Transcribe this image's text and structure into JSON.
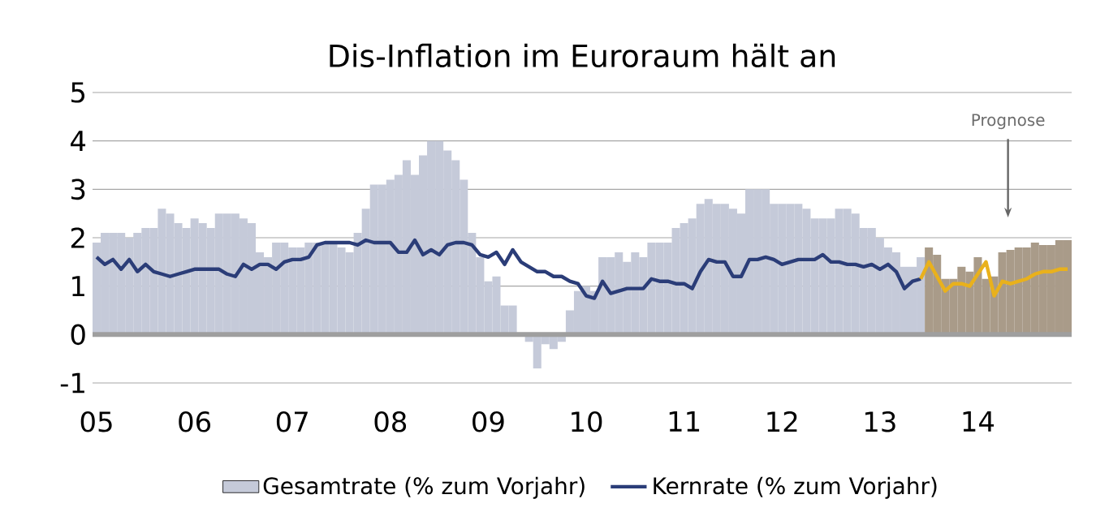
{
  "chart_data": {
    "type": "bar",
    "title": "Dis-Inflation im Euroraum hält an",
    "categories": [
      "05",
      null,
      null,
      null,
      null,
      null,
      null,
      null,
      null,
      null,
      null,
      null,
      "06",
      null,
      null,
      null,
      null,
      null,
      null,
      null,
      null,
      null,
      null,
      null,
      "07",
      null,
      null,
      null,
      null,
      null,
      null,
      null,
      null,
      null,
      null,
      null,
      "08",
      null,
      null,
      null,
      null,
      null,
      null,
      null,
      null,
      null,
      null,
      null,
      "09",
      null,
      null,
      null,
      null,
      null,
      null,
      null,
      null,
      null,
      null,
      null,
      "10",
      null,
      null,
      null,
      null,
      null,
      null,
      null,
      null,
      null,
      null,
      null,
      "11",
      null,
      null,
      null,
      null,
      null,
      null,
      null,
      null,
      null,
      null,
      null,
      "12",
      null,
      null,
      null,
      null,
      null,
      null,
      null,
      null,
      null,
      null,
      null,
      "13",
      null,
      null,
      null,
      null,
      null,
      null,
      null,
      null,
      null,
      null,
      null,
      "14",
      null,
      null,
      null,
      null,
      null,
      null,
      null,
      null,
      null,
      null,
      null
    ],
    "series": [
      {
        "name": "Gesamtrate (% zum Vorjahr)",
        "color": "#c5cad9",
        "values": [
          1.9,
          2.1,
          2.1,
          2.1,
          2.0,
          2.1,
          2.2,
          2.2,
          2.6,
          2.5,
          2.3,
          2.2,
          2.4,
          2.3,
          2.2,
          2.5,
          2.5,
          2.5,
          2.4,
          2.3,
          1.7,
          1.6,
          1.9,
          1.9,
          1.8,
          1.8,
          1.9,
          1.9,
          1.9,
          1.9,
          1.8,
          1.7,
          2.1,
          2.6,
          3.1,
          3.1,
          3.2,
          3.3,
          3.6,
          3.3,
          3.7,
          4.0,
          4.0,
          3.8,
          3.6,
          3.2,
          2.1,
          1.6,
          1.1,
          1.2,
          0.6,
          0.6,
          0.0,
          -0.15,
          -0.7,
          -0.2,
          -0.3,
          -0.15,
          0.5,
          0.9,
          1.0,
          0.9,
          1.6,
          1.6,
          1.7,
          1.5,
          1.7,
          1.6,
          1.9,
          1.9,
          1.9,
          2.2,
          2.3,
          2.4,
          2.7,
          2.8,
          2.7,
          2.7,
          2.6,
          2.5,
          3.0,
          3.0,
          3.0,
          2.7,
          2.7,
          2.7,
          2.7,
          2.6,
          2.4,
          2.4,
          2.4,
          2.6,
          2.6,
          2.5,
          2.2,
          2.2,
          2.0,
          1.8,
          1.7,
          1.4,
          1.4,
          1.6,
          null,
          null,
          null,
          null,
          null,
          null,
          null,
          null,
          null,
          null,
          null,
          null,
          null,
          null,
          null,
          null,
          null,
          null
        ]
      },
      {
        "color": "#a99b89",
        "values": [
          null,
          null,
          null,
          null,
          null,
          null,
          null,
          null,
          null,
          null,
          null,
          null,
          null,
          null,
          null,
          null,
          null,
          null,
          null,
          null,
          null,
          null,
          null,
          null,
          null,
          null,
          null,
          null,
          null,
          null,
          null,
          null,
          null,
          null,
          null,
          null,
          null,
          null,
          null,
          null,
          null,
          null,
          null,
          null,
          null,
          null,
          null,
          null,
          null,
          null,
          null,
          null,
          null,
          null,
          null,
          null,
          null,
          null,
          null,
          null,
          null,
          null,
          null,
          null,
          null,
          null,
          null,
          null,
          null,
          null,
          null,
          null,
          null,
          null,
          null,
          null,
          null,
          null,
          null,
          null,
          null,
          null,
          null,
          null,
          null,
          null,
          null,
          null,
          null,
          null,
          null,
          null,
          null,
          null,
          null,
          null,
          null,
          null,
          null,
          null,
          null,
          null,
          1.8,
          1.65,
          1.15,
          1.15,
          1.4,
          1.3,
          1.6,
          1.15,
          1.2,
          1.7,
          1.75,
          1.8,
          1.8,
          1.9,
          1.85,
          1.85,
          1.95,
          1.95
        ]
      },
      {
        "name": "Kernrate (% zum Vorjahr)",
        "type": "line",
        "color": "#2b3d78",
        "values": [
          1.6,
          1.45,
          1.55,
          1.35,
          1.55,
          1.3,
          1.45,
          1.3,
          1.25,
          1.2,
          1.25,
          1.3,
          1.35,
          1.35,
          1.35,
          1.35,
          1.25,
          1.2,
          1.45,
          1.35,
          1.45,
          1.45,
          1.35,
          1.5,
          1.55,
          1.55,
          1.6,
          1.85,
          1.9,
          1.9,
          1.9,
          1.9,
          1.85,
          1.95,
          1.9,
          1.9,
          1.9,
          1.7,
          1.7,
          1.95,
          1.65,
          1.75,
          1.65,
          1.85,
          1.9,
          1.9,
          1.85,
          1.65,
          1.6,
          1.7,
          1.45,
          1.75,
          1.5,
          1.4,
          1.3,
          1.3,
          1.2,
          1.2,
          1.1,
          1.05,
          0.8,
          0.75,
          1.1,
          0.85,
          0.9,
          0.95,
          0.95,
          0.95,
          1.15,
          1.1,
          1.1,
          1.05,
          1.05,
          0.95,
          1.3,
          1.55,
          1.5,
          1.5,
          1.2,
          1.2,
          1.55,
          1.55,
          1.6,
          1.55,
          1.45,
          1.5,
          1.55,
          1.55,
          1.55,
          1.65,
          1.5,
          1.5,
          1.45,
          1.45,
          1.4,
          1.45,
          1.35,
          1.45,
          1.3,
          0.95,
          1.1,
          1.15,
          null,
          null,
          null,
          null,
          null,
          null,
          null,
          null,
          null,
          null,
          null,
          null,
          null,
          null,
          null,
          null,
          null,
          null
        ]
      },
      {
        "type": "line",
        "color": "#e9b11c",
        "values": [
          null,
          null,
          null,
          null,
          null,
          null,
          null,
          null,
          null,
          null,
          null,
          null,
          null,
          null,
          null,
          null,
          null,
          null,
          null,
          null,
          null,
          null,
          null,
          null,
          null,
          null,
          null,
          null,
          null,
          null,
          null,
          null,
          null,
          null,
          null,
          null,
          null,
          null,
          null,
          null,
          null,
          null,
          null,
          null,
          null,
          null,
          null,
          null,
          null,
          null,
          null,
          null,
          null,
          null,
          null,
          null,
          null,
          null,
          null,
          null,
          null,
          null,
          null,
          null,
          null,
          null,
          null,
          null,
          null,
          null,
          null,
          null,
          null,
          null,
          null,
          null,
          null,
          null,
          null,
          null,
          null,
          null,
          null,
          null,
          null,
          null,
          null,
          null,
          null,
          null,
          null,
          null,
          null,
          null,
          null,
          null,
          null,
          null,
          null,
          null,
          null,
          1.15,
          1.5,
          1.2,
          0.9,
          1.05,
          1.05,
          1.0,
          1.25,
          1.5,
          0.8,
          1.1,
          1.05,
          1.1,
          1.15,
          1.25,
          1.3,
          1.3,
          1.35,
          1.35
        ]
      }
    ],
    "ylim": [
      -1,
      5
    ],
    "yticks": [
      -1,
      0,
      1,
      2,
      3,
      4,
      5
    ],
    "grid": "y",
    "legend": "bottom",
    "annotations": [
      "Prognose"
    ]
  }
}
